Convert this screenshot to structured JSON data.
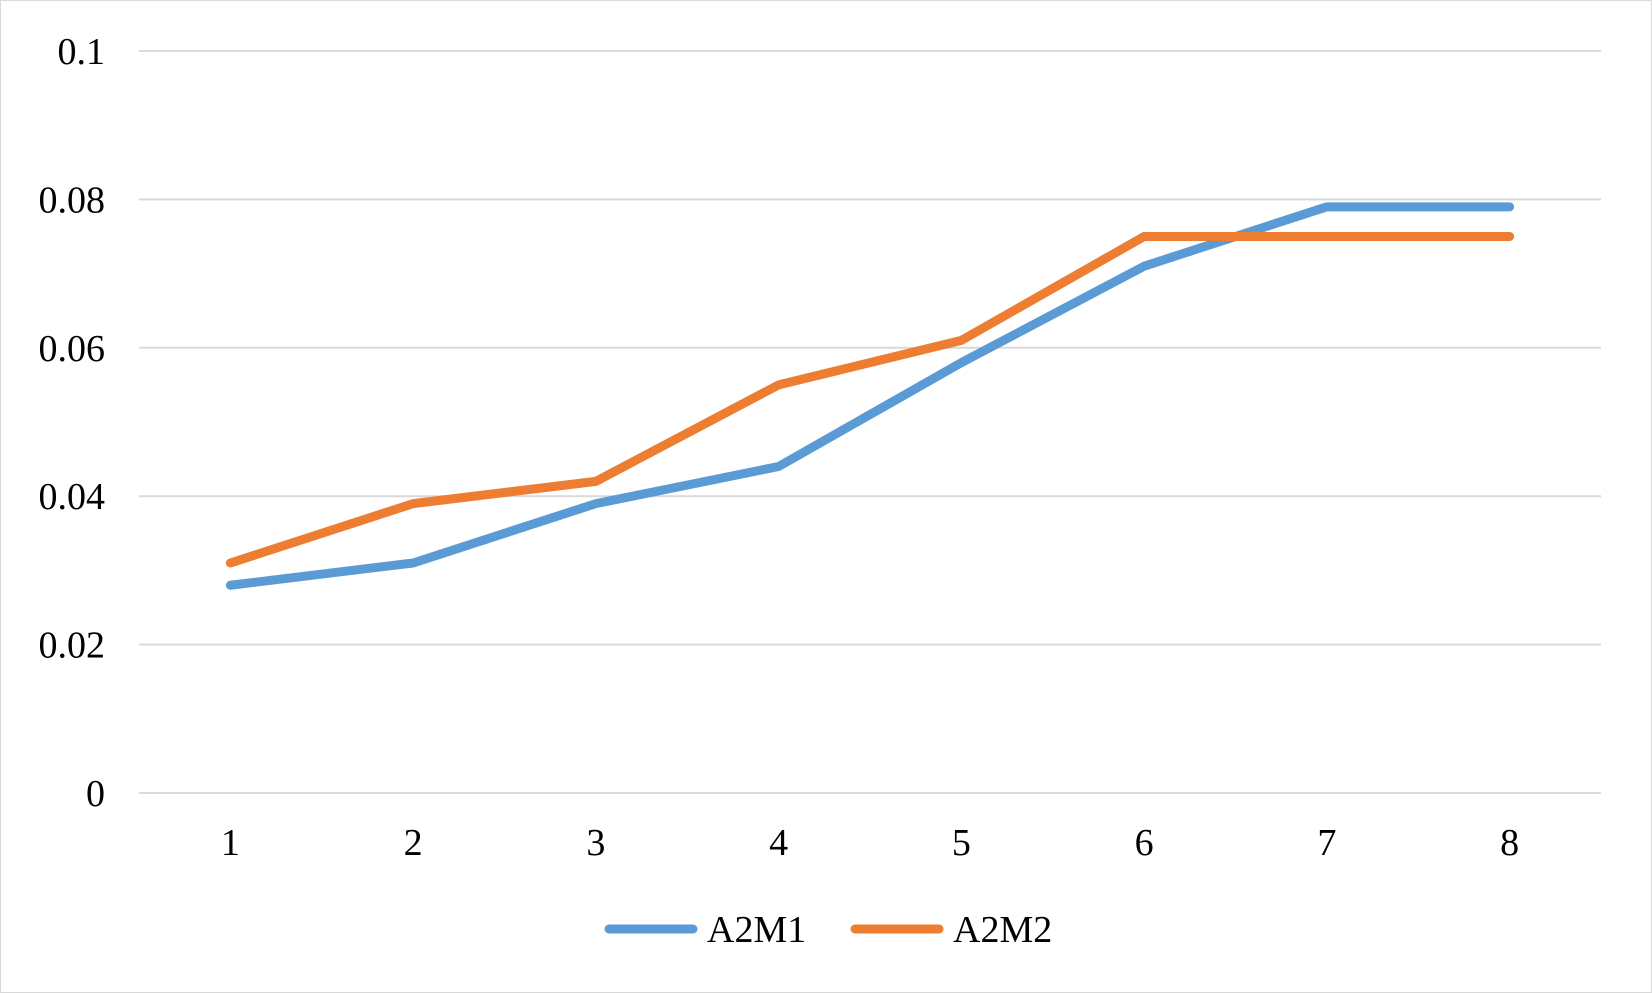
{
  "chart_data": {
    "type": "line",
    "title": "",
    "xlabel": "",
    "ylabel": "",
    "categories": [
      "1",
      "2",
      "3",
      "4",
      "5",
      "6",
      "7",
      "8"
    ],
    "ylim": [
      0,
      0.1
    ],
    "yticks": [
      "0",
      "0.02",
      "0.04",
      "0.06",
      "0.08",
      "0.1"
    ],
    "grid": true,
    "legend_position": "bottom",
    "series": [
      {
        "name": "A2M1",
        "color": "#5b9bd5",
        "values": [
          0.028,
          0.031,
          0.039,
          0.044,
          0.058,
          0.071,
          0.079,
          0.079
        ]
      },
      {
        "name": "A2M2",
        "color": "#ed7d31",
        "values": [
          0.031,
          0.039,
          0.042,
          0.055,
          0.061,
          0.075,
          0.075,
          0.075
        ]
      }
    ]
  }
}
